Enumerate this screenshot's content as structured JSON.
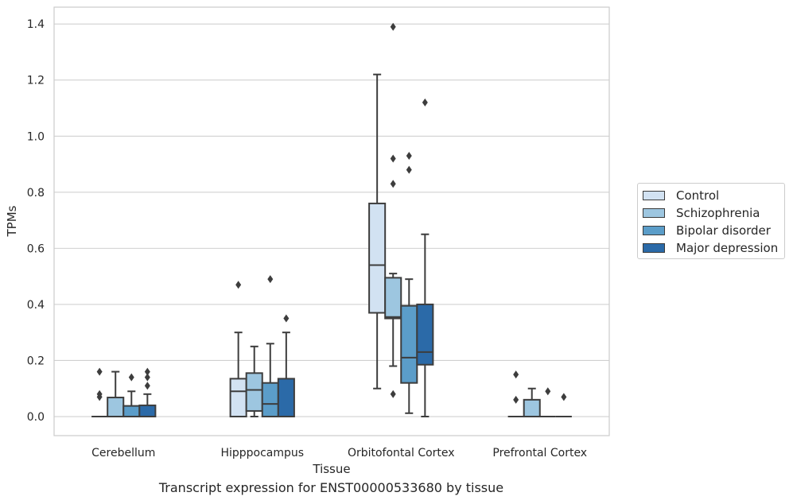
{
  "caption": "Transcript expression for ENST00000533680 by tissue",
  "chart_data": {
    "type": "box",
    "xlabel": "Tissue",
    "ylabel": "TPMs",
    "ylim": [
      -0.068,
      1.46
    ],
    "yticks": [
      0.0,
      0.2,
      0.4,
      0.6,
      0.8,
      1.0,
      1.2,
      1.4
    ],
    "ytick_labels": [
      "0.0",
      "0.2",
      "0.4",
      "0.6",
      "0.8",
      "1.0",
      "1.2",
      "1.4"
    ],
    "grid": "horizontal",
    "legend_position": "right",
    "categories": [
      "Cerebellum",
      "Hipppocampus",
      "Orbitofontal Cortex",
      "Prefrontal Cortex"
    ],
    "series": [
      {
        "name": "Control",
        "color": "#d2e2f2",
        "boxes": [
          {
            "q1": 0.0,
            "median": 0.0,
            "q3": 0.0,
            "whisker_low": 0.0,
            "whisker_high": 0.0,
            "outliers": [
              0.16,
              0.08,
              0.07
            ]
          },
          {
            "q1": 0.0,
            "median": 0.09,
            "q3": 0.135,
            "whisker_low": 0.0,
            "whisker_high": 0.3,
            "outliers": [
              0.47
            ]
          },
          {
            "q1": 0.37,
            "median": 0.54,
            "q3": 0.76,
            "whisker_low": 0.1,
            "whisker_high": 1.22,
            "outliers": []
          },
          {
            "q1": 0.0,
            "median": 0.0,
            "q3": 0.0,
            "whisker_low": 0.0,
            "whisker_high": 0.0,
            "outliers": [
              0.15,
              0.06
            ]
          }
        ]
      },
      {
        "name": "Schizophrenia",
        "color": "#9dc6e0",
        "boxes": [
          {
            "q1": 0.0,
            "median": 0.0,
            "q3": 0.068,
            "whisker_low": 0.0,
            "whisker_high": 0.16,
            "outliers": []
          },
          {
            "q1": 0.02,
            "median": 0.095,
            "q3": 0.155,
            "whisker_low": 0.0,
            "whisker_high": 0.25,
            "outliers": []
          },
          {
            "q1": 0.35,
            "median": 0.355,
            "q3": 0.495,
            "whisker_low": 0.18,
            "whisker_high": 0.51,
            "outliers": [
              1.39,
              0.92,
              0.83,
              0.08
            ]
          },
          {
            "q1": 0.0,
            "median": 0.0,
            "q3": 0.06,
            "whisker_low": 0.0,
            "whisker_high": 0.1,
            "outliers": []
          }
        ]
      },
      {
        "name": "Bipolar disorder",
        "color": "#5b9dc9",
        "boxes": [
          {
            "q1": 0.0,
            "median": 0.0,
            "q3": 0.038,
            "whisker_low": 0.0,
            "whisker_high": 0.09,
            "outliers": [
              0.14
            ]
          },
          {
            "q1": 0.0,
            "median": 0.045,
            "q3": 0.12,
            "whisker_low": 0.0,
            "whisker_high": 0.26,
            "outliers": [
              0.49
            ]
          },
          {
            "q1": 0.12,
            "median": 0.21,
            "q3": 0.395,
            "whisker_low": 0.012,
            "whisker_high": 0.49,
            "outliers": [
              0.93,
              0.88
            ]
          },
          {
            "q1": 0.0,
            "median": 0.0,
            "q3": 0.0,
            "whisker_low": 0.0,
            "whisker_high": 0.0,
            "outliers": [
              0.09
            ]
          }
        ]
      },
      {
        "name": "Major depression",
        "color": "#2b6aa8",
        "boxes": [
          {
            "q1": 0.0,
            "median": 0.0,
            "q3": 0.04,
            "whisker_low": 0.0,
            "whisker_high": 0.08,
            "outliers": [
              0.16,
              0.14,
              0.11
            ]
          },
          {
            "q1": 0.0,
            "median": 0.0,
            "q3": 0.135,
            "whisker_low": 0.0,
            "whisker_high": 0.3,
            "outliers": [
              0.35
            ]
          },
          {
            "q1": 0.185,
            "median": 0.23,
            "q3": 0.4,
            "whisker_low": 0.0,
            "whisker_high": 0.65,
            "outliers": [
              1.12
            ]
          },
          {
            "q1": 0.0,
            "median": 0.0,
            "q3": 0.0,
            "whisker_low": 0.0,
            "whisker_high": 0.0,
            "outliers": [
              0.07
            ]
          }
        ]
      }
    ]
  }
}
